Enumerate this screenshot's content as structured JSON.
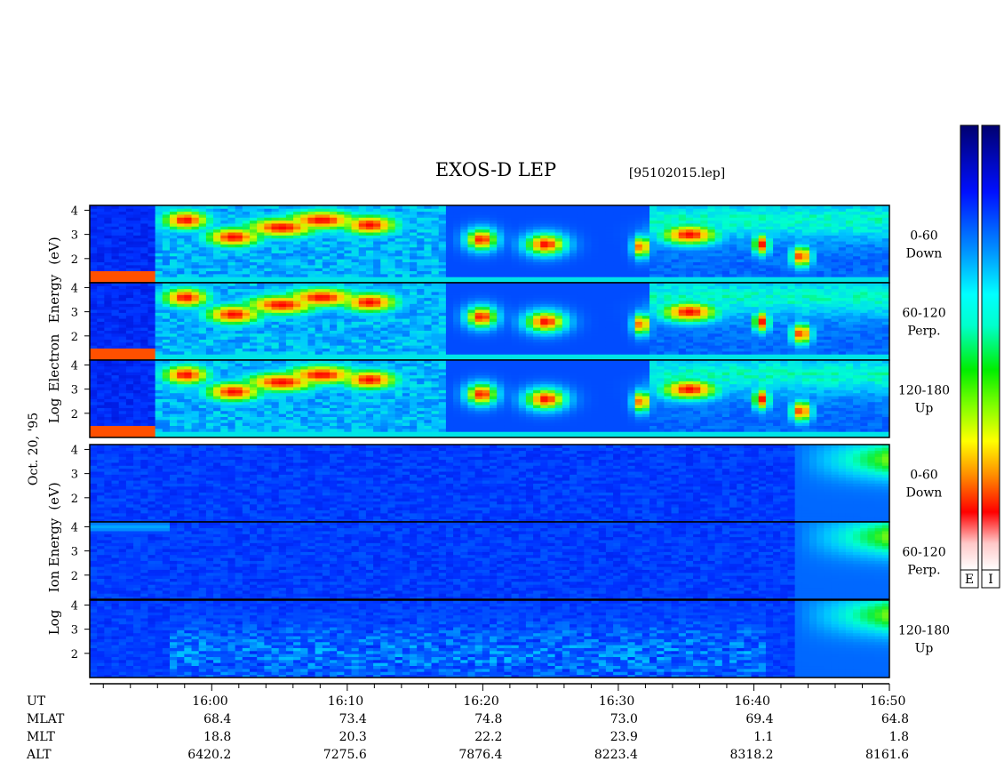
{
  "title": "EXOS-D LEP",
  "file_tag": "[95102015.lep]",
  "date_label": "Oct. 20, '95",
  "electron_ylabel": [
    "Log",
    "Electron",
    "Energy",
    "(eV)"
  ],
  "ion_ylabel": [
    "Log",
    "Ion",
    "Energy",
    "(eV)"
  ],
  "colorbar_labels": [
    "E",
    "I"
  ],
  "colors": {
    "background_spec": "#0a1acc",
    "colormap": [
      "#ffffff",
      "#ffd0d0",
      "#ff0000",
      "#ff8000",
      "#ffff00",
      "#00ff00",
      "#00ffff",
      "#0080ff",
      "#0000ff",
      "#000080"
    ]
  },
  "chart_data": {
    "type": "heatmap",
    "x_range_ut": [
      "15:51",
      "16:50"
    ],
    "x_ticks": [
      "16:00",
      "16:10",
      "16:20",
      "16:30",
      "16:40",
      "16:50"
    ],
    "y_ticks": [
      "2",
      "3",
      "4"
    ],
    "ylim_log_ev": [
      1,
      4.2
    ],
    "panels": [
      {
        "species": "Electron",
        "pitch": "0-60",
        "direction": "Down"
      },
      {
        "species": "Electron",
        "pitch": "60-120",
        "direction": "Perp."
      },
      {
        "species": "Electron",
        "pitch": "120-180",
        "direction": "Up"
      },
      {
        "species": "Ion",
        "pitch": "0-60",
        "direction": "Down"
      },
      {
        "species": "Ion",
        "pitch": "60-120",
        "direction": "Perp."
      },
      {
        "species": "Ion",
        "pitch": "120-180",
        "direction": "Up"
      }
    ],
    "ephemeris": {
      "row_labels": [
        "UT",
        "MLAT",
        "MLT",
        "ALT"
      ],
      "UT": [
        "16:00",
        "16:10",
        "16:20",
        "16:30",
        "16:40",
        "16:50"
      ],
      "MLAT": [
        "68.4",
        "73.4",
        "74.8",
        "73.0",
        "69.4",
        "64.8"
      ],
      "MLT": [
        "18.8",
        "20.3",
        "22.2",
        "23.9",
        "1.1",
        "1.8"
      ],
      "ALT": [
        "6420.2",
        "7275.6",
        "7876.4",
        "8223.4",
        "8318.2",
        "8161.6"
      ]
    }
  }
}
